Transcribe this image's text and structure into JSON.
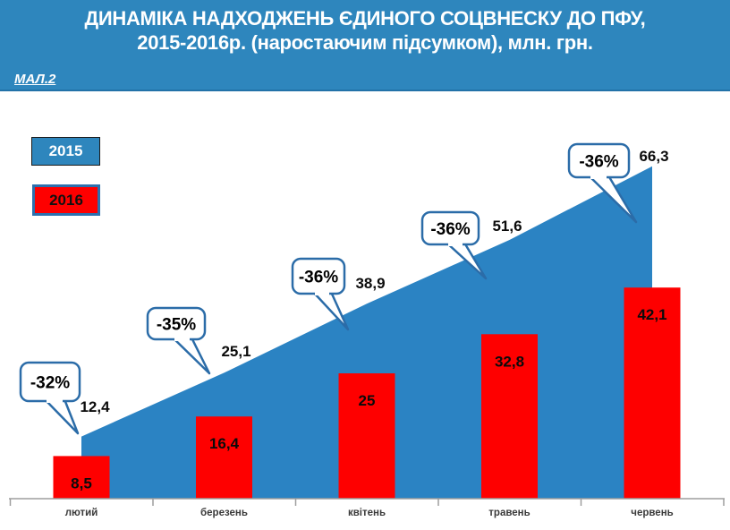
{
  "header": {
    "title_line1": "ДИНАМІКА НАДХОДЖЕНЬ ЄДИНОГО СОЦВНЕСКУ ДО ПФУ,",
    "title_line2": "2015-2016р. (наростаючим підсумком), млн. грн.",
    "figure_label": "МАЛ.2"
  },
  "legend": [
    {
      "label": "2015",
      "color": "#2E86BD",
      "text_color": "#ffffff"
    },
    {
      "label": "2016",
      "color": "#FE0000",
      "text_color": "#111111"
    }
  ],
  "chart_data": {
    "type": "area+bar combo",
    "categories": [
      "лютий",
      "березень",
      "квітень",
      "травень",
      "червень"
    ],
    "series": [
      {
        "name": "2015",
        "type": "area",
        "color": "#2B83C3",
        "values": [
          12.4,
          25.1,
          38.9,
          51.6,
          66.3
        ],
        "labels": [
          "12,4",
          "25,1",
          "38,9",
          "51,6",
          "66,3"
        ]
      },
      {
        "name": "2016",
        "type": "bar",
        "color": "#FE0000",
        "values": [
          8.5,
          16.4,
          25,
          32.8,
          42.1
        ],
        "labels": [
          "8,5",
          "16,4",
          "25",
          "32,8",
          "42,1"
        ]
      }
    ],
    "callouts": [
      "-32%",
      "-35%",
      "-36%",
      "-36%",
      "-36%"
    ],
    "callout_border_color": "#2B6CA8",
    "axis_color": "#9e9e9e",
    "ylim": [
      0,
      70
    ],
    "grid": false,
    "legend_position": "top-left"
  }
}
